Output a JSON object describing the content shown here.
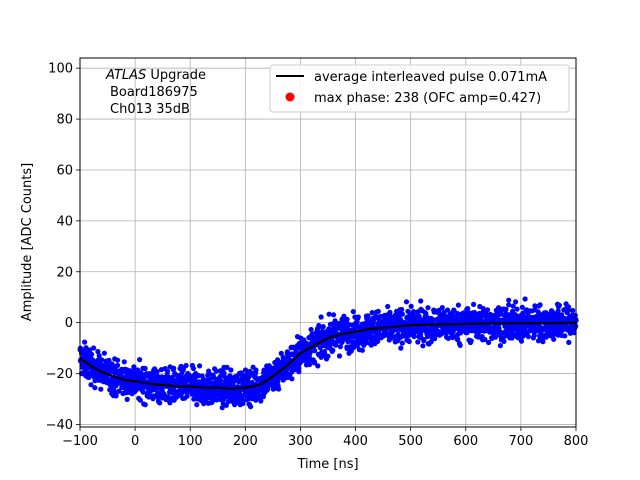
{
  "chart_data": {
    "type": "scatter",
    "xlabel": "Time [ns]",
    "ylabel": "Amplitude [ADC Counts]",
    "xlim": [
      -100,
      800
    ],
    "ylim": [
      -41,
      104
    ],
    "x_ticks": [
      "−100",
      "0",
      "100",
      "200",
      "300",
      "400",
      "500",
      "600",
      "700",
      "800"
    ],
    "x_tick_values": [
      -100,
      0,
      100,
      200,
      300,
      400,
      500,
      600,
      700,
      800
    ],
    "y_ticks": [
      "−40",
      "−20",
      "0",
      "20",
      "40",
      "60",
      "80",
      "100"
    ],
    "y_tick_values": [
      -40,
      -20,
      0,
      20,
      40,
      60,
      80,
      100
    ],
    "grid": true,
    "legend_position": "top-right",
    "annotation": {
      "line1_italic": "ATLAS",
      "line1_rest": " Upgrade",
      "line2": "Board186975",
      "line3": "Ch013 35dB"
    },
    "legend": [
      {
        "label": "average interleaved pulse 0.071mA",
        "marker": "line",
        "color": "#000000"
      },
      {
        "label": "max phase: 238 (OFC amp=0.427)",
        "marker": "dot",
        "color": "#ff0000"
      }
    ],
    "series": [
      {
        "name": "average interleaved pulse 0.071mA",
        "color": "#000000",
        "x": [
          -100,
          -80,
          -60,
          -40,
          -20,
          0,
          25,
          50,
          75,
          100,
          125,
          150,
          175,
          200,
          215,
          230,
          250,
          275,
          300,
          325,
          350,
          375,
          400,
          425,
          450,
          475,
          500,
          550,
          600,
          650,
          700,
          750,
          800
        ],
        "y": [
          -14,
          -17,
          -19.5,
          -21,
          -22.5,
          -23,
          -24,
          -24.5,
          -25,
          -25,
          -25.5,
          -25.5,
          -26,
          -25.5,
          -25,
          -24,
          -21,
          -17,
          -12,
          -9,
          -6,
          -4.5,
          -3.5,
          -2.5,
          -2,
          -1.5,
          -1,
          -0.7,
          -0.5,
          -0.3,
          -0.2,
          -0.2,
          -0.1
        ]
      },
      {
        "name": "samples",
        "color": "#0000ff",
        "spread": 4.5,
        "x_range": [
          -100,
          800
        ]
      },
      {
        "name": "max phase: 238 (OFC amp=0.427)",
        "color": "#ff0000",
        "x": [],
        "y": []
      }
    ]
  }
}
